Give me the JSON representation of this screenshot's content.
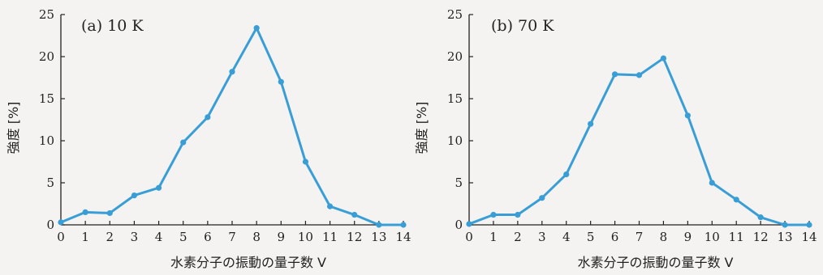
{
  "chart_data": [
    {
      "type": "line",
      "title": "(a)  10 K",
      "xlabel": "水素分子の振動の量子数   V",
      "ylabel": "強度  [%]",
      "x": [
        0,
        1,
        2,
        3,
        4,
        5,
        6,
        7,
        8,
        9,
        10,
        11,
        12,
        13,
        14
      ],
      "xticks": [
        "0",
        "1",
        "2",
        "3",
        "4",
        "5",
        "6",
        "7",
        "8",
        "9",
        "10",
        "11",
        "12",
        "13",
        "14"
      ],
      "yticks": [
        "0",
        "5",
        "10",
        "15",
        "20",
        "25"
      ],
      "xlim": [
        0,
        14
      ],
      "ylim": [
        0,
        25
      ],
      "series": [
        {
          "values": [
            0.3,
            1.5,
            1.4,
            3.5,
            4.4,
            9.8,
            12.8,
            18.2,
            23.4,
            17.0,
            7.5,
            2.2,
            1.2,
            0.0,
            0.0
          ]
        }
      ],
      "grid": false,
      "line_color": "#3a9ed6"
    },
    {
      "type": "line",
      "title": "(b)  70 K",
      "xlabel": "水素分子の振動の量子数   V",
      "ylabel": "強度  [%]",
      "x": [
        0,
        1,
        2,
        3,
        4,
        5,
        6,
        7,
        8,
        9,
        10,
        11,
        12,
        13,
        14
      ],
      "xticks": [
        "0",
        "1",
        "2",
        "3",
        "4",
        "5",
        "6",
        "7",
        "8",
        "9",
        "10",
        "11",
        "12",
        "13",
        "14"
      ],
      "yticks": [
        "0",
        "5",
        "10",
        "15",
        "20",
        "25"
      ],
      "xlim": [
        0,
        14
      ],
      "ylim": [
        0,
        25
      ],
      "series": [
        {
          "values": [
            0.1,
            1.2,
            1.2,
            3.2,
            6.0,
            12.0,
            17.9,
            17.8,
            19.8,
            13.0,
            5.0,
            3.0,
            0.9,
            0.0,
            0.0
          ]
        }
      ],
      "grid": false,
      "line_color": "#3a9ed6"
    }
  ]
}
